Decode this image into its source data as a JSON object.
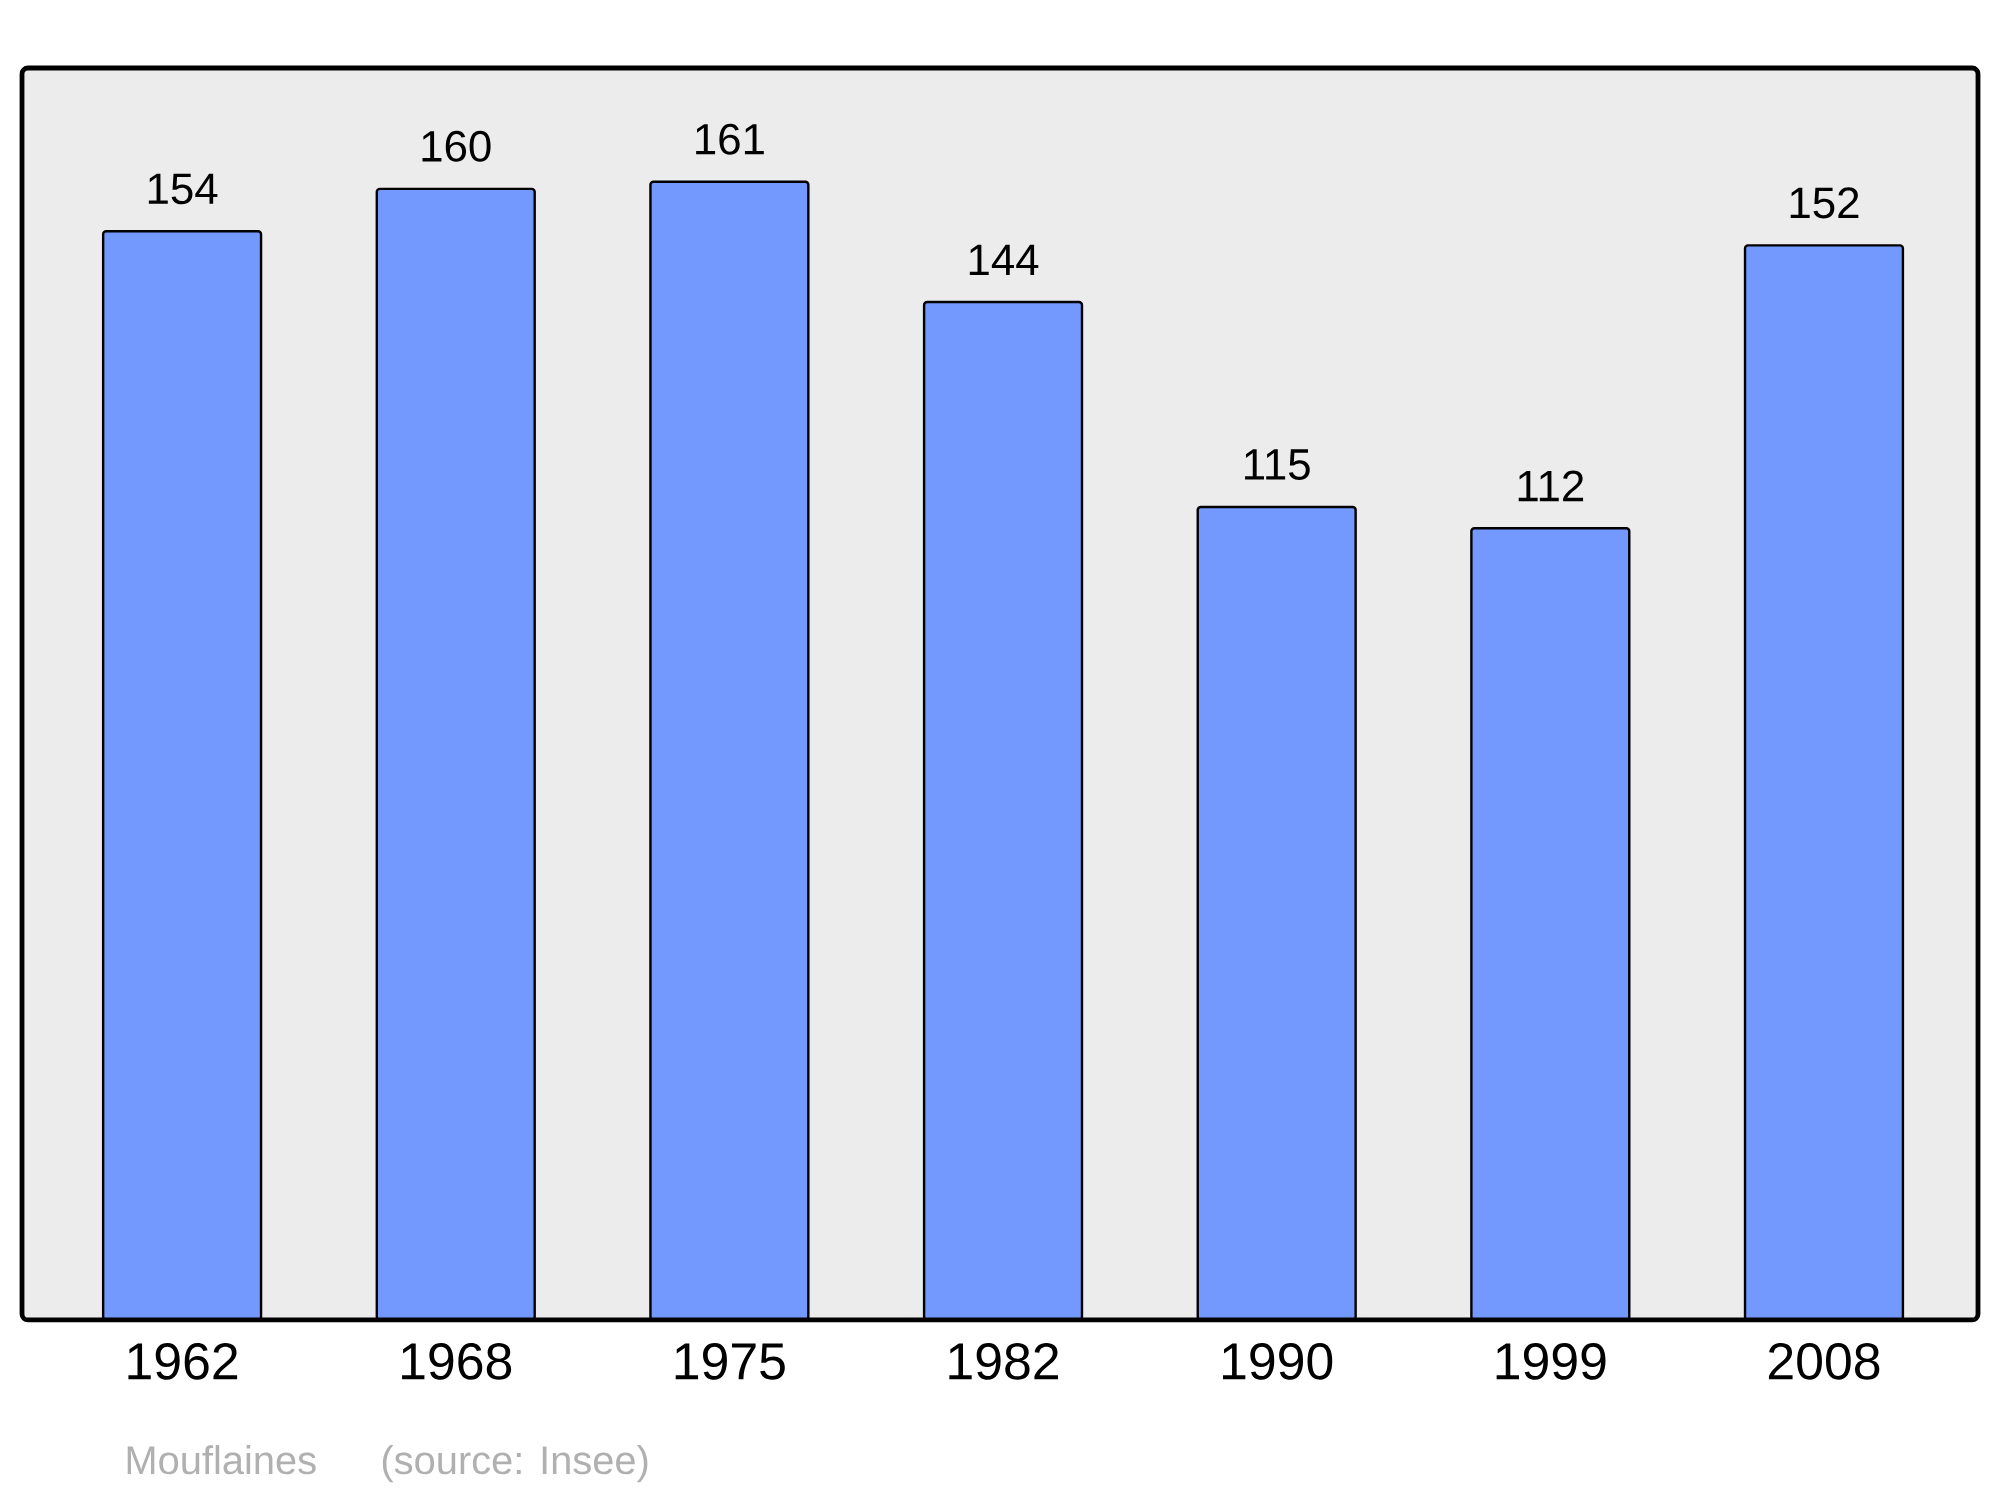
{
  "chart_data": {
    "type": "bar",
    "categories": [
      "1962",
      "1968",
      "1975",
      "1982",
      "1990",
      "1999",
      "2008"
    ],
    "values": [
      154,
      160,
      161,
      144,
      115,
      112,
      152
    ],
    "color": "#7399ff",
    "data_labels": true,
    "annotations": [
      "Mouflaines",
      "(source: Insee)"
    ]
  }
}
